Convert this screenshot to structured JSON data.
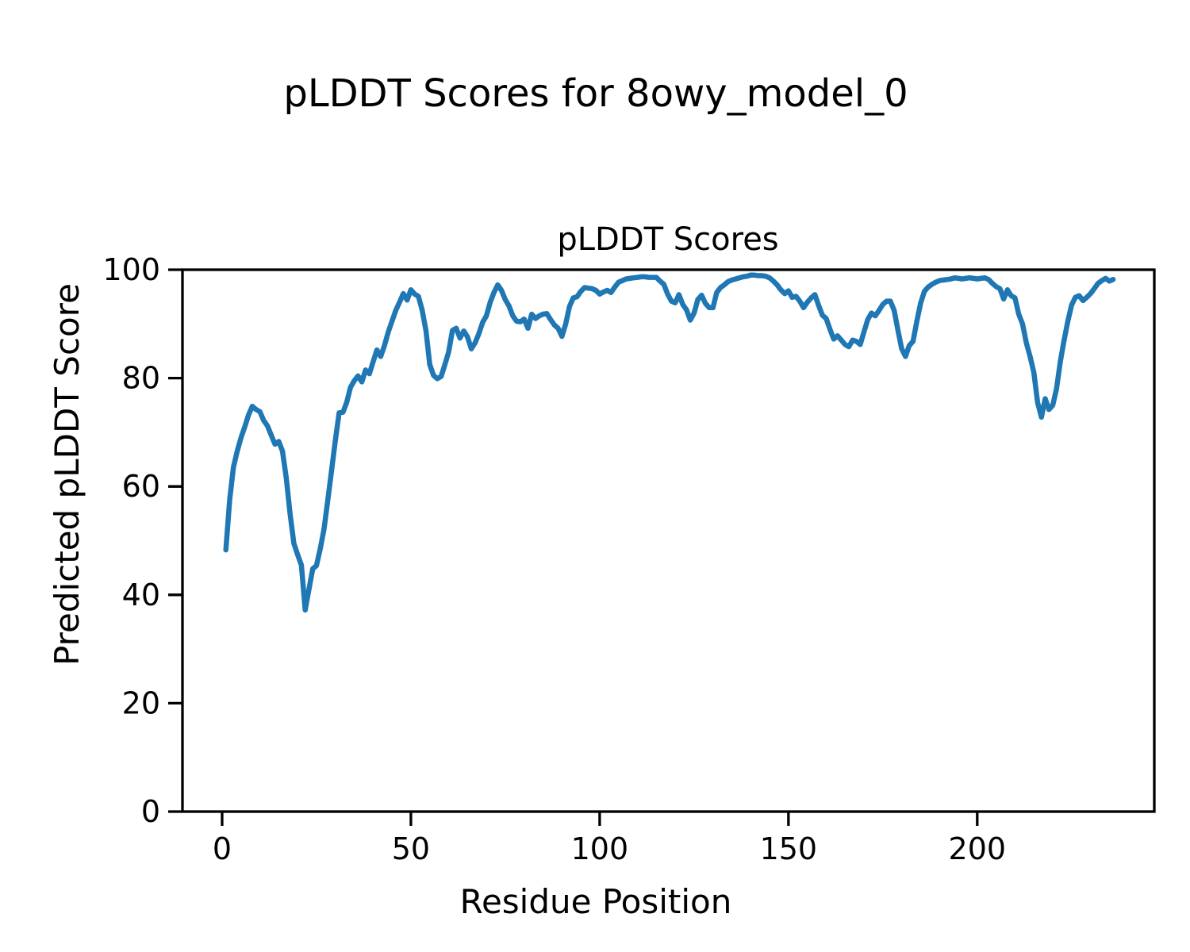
{
  "figure": {
    "suptitle": "pLDDT Scores for 8owy_model_0",
    "background": "#ffffff",
    "text_color": "#000000",
    "spine_color": "#000000"
  },
  "chart_data": {
    "type": "line",
    "title": "pLDDT Scores",
    "suptitle": "pLDDT Scores for 8owy_model_0",
    "xlabel": "Residue Position",
    "ylabel": "Predicted pLDDT Score",
    "xlim": [
      -10.5,
      246.9
    ],
    "ylim": [
      0,
      100
    ],
    "xticks": [
      0,
      50,
      100,
      150,
      200
    ],
    "xtick_labels": [
      "0",
      "50",
      "100",
      "150",
      "200"
    ],
    "yticks": [
      0,
      20,
      40,
      60,
      80,
      100
    ],
    "ytick_labels": [
      "0",
      "20",
      "40",
      "60",
      "80",
      "100"
    ],
    "grid": false,
    "legend": null,
    "series": [
      {
        "name": "pLDDT",
        "color": "#1f77b4",
        "x": [
          1,
          2,
          3,
          4,
          5,
          6,
          7,
          8,
          9,
          10,
          11,
          12,
          13,
          14,
          15,
          16,
          17,
          18,
          19,
          20,
          21,
          22,
          23,
          24,
          25,
          26,
          27,
          28,
          29,
          30,
          31,
          32,
          33,
          34,
          35,
          36,
          37,
          38,
          39,
          40,
          41,
          42,
          43,
          44,
          45,
          46,
          47,
          48,
          49,
          50,
          51,
          52,
          53,
          54,
          55,
          56,
          57,
          58,
          59,
          60,
          61,
          62,
          63,
          64,
          65,
          66,
          67,
          68,
          69,
          70,
          71,
          72,
          73,
          74,
          75,
          76,
          77,
          78,
          79,
          80,
          81,
          82,
          83,
          84,
          85,
          86,
          87,
          88,
          89,
          90,
          91,
          92,
          93,
          94,
          95,
          96,
          97,
          98,
          99,
          100,
          101,
          102,
          103,
          104,
          105,
          106,
          107,
          108,
          109,
          110,
          111,
          112,
          113,
          114,
          115,
          116,
          117,
          118,
          119,
          120,
          121,
          122,
          123,
          124,
          125,
          126,
          127,
          128,
          129,
          130,
          131,
          132,
          133,
          134,
          135,
          136,
          137,
          138,
          139,
          140,
          141,
          142,
          143,
          144,
          145,
          146,
          147,
          148,
          149,
          150,
          151,
          152,
          153,
          154,
          155,
          156,
          157,
          158,
          159,
          160,
          161,
          162,
          163,
          164,
          165,
          166,
          167,
          168,
          169,
          170,
          171,
          172,
          173,
          174,
          175,
          176,
          177,
          178,
          179,
          180,
          181,
          182,
          183,
          184,
          185,
          186,
          187,
          188,
          189,
          190,
          191,
          192,
          193,
          194,
          195,
          196,
          197,
          198,
          199,
          200,
          201,
          202,
          203,
          204,
          205,
          206,
          207,
          208,
          209,
          210,
          211,
          212,
          213,
          214,
          215,
          216,
          217,
          218,
          219,
          220,
          221,
          222,
          223,
          224,
          225,
          226,
          227,
          228,
          229,
          230,
          231,
          232,
          233,
          234,
          235,
          236
        ],
        "y": [
          48.3,
          57.5,
          63.5,
          66.5,
          69.0,
          71.0,
          73.2,
          74.8,
          74.2,
          73.8,
          72.2,
          71.2,
          69.5,
          67.8,
          68.3,
          66.5,
          61.5,
          55.0,
          49.5,
          47.4,
          45.5,
          37.2,
          41.0,
          44.8,
          45.4,
          48.5,
          52.2,
          57.5,
          63.0,
          68.5,
          73.6,
          73.7,
          75.5,
          78.3,
          79.5,
          80.4,
          79.3,
          81.5,
          80.8,
          83.0,
          85.2,
          84.0,
          86.0,
          88.5,
          90.5,
          92.5,
          94.0,
          95.6,
          94.4,
          96.3,
          95.5,
          95.1,
          92.5,
          88.7,
          82.5,
          80.5,
          79.9,
          80.3,
          82.5,
          84.8,
          88.8,
          89.2,
          87.4,
          88.7,
          87.6,
          85.4,
          86.5,
          88.2,
          90.3,
          91.5,
          94.0,
          95.8,
          97.2,
          96.2,
          94.5,
          93.3,
          91.5,
          90.5,
          90.4,
          90.9,
          89.2,
          91.8,
          91.0,
          91.5,
          91.8,
          91.9,
          90.8,
          89.8,
          89.2,
          87.7,
          90.0,
          93.2,
          94.8,
          95.0,
          96.0,
          96.7,
          96.6,
          96.5,
          96.2,
          95.5,
          95.9,
          96.2,
          95.8,
          96.8,
          97.7,
          98.0,
          98.3,
          98.4,
          98.5,
          98.6,
          98.7,
          98.7,
          98.6,
          98.6,
          98.6,
          97.9,
          97.3,
          95.5,
          94.2,
          93.9,
          95.4,
          93.6,
          92.6,
          90.7,
          92.0,
          94.5,
          95.3,
          93.8,
          93.0,
          93.0,
          95.8,
          96.7,
          97.2,
          97.8,
          98.1,
          98.3,
          98.5,
          98.7,
          98.8,
          99.0,
          99.0,
          98.9,
          98.9,
          98.8,
          98.5,
          97.9,
          97.2,
          96.3,
          95.6,
          96.1,
          94.9,
          95.1,
          94.2,
          93.0,
          94.0,
          94.8,
          95.4,
          93.4,
          91.6,
          91.0,
          89.0,
          87.2,
          87.8,
          87.0,
          86.2,
          85.8,
          87.0,
          86.8,
          86.2,
          88.5,
          90.8,
          92.0,
          91.5,
          92.5,
          93.6,
          94.2,
          94.2,
          92.5,
          88.8,
          85.4,
          84.0,
          86.0,
          86.8,
          90.5,
          93.8,
          96.0,
          96.8,
          97.3,
          97.7,
          98.0,
          98.1,
          98.2,
          98.3,
          98.5,
          98.4,
          98.3,
          98.4,
          98.5,
          98.4,
          98.3,
          98.4,
          98.5,
          98.2,
          97.5,
          96.9,
          96.5,
          94.6,
          96.3,
          95.2,
          94.8,
          91.8,
          90.0,
          86.5,
          84.0,
          81.0,
          75.5,
          72.8,
          76.2,
          74.2,
          75.0,
          78.0,
          83.0,
          87.0,
          90.5,
          93.5,
          94.9,
          95.2,
          94.3,
          94.9,
          95.6,
          96.5,
          97.5,
          98.0,
          98.4,
          97.9,
          98.2
        ]
      }
    ]
  }
}
